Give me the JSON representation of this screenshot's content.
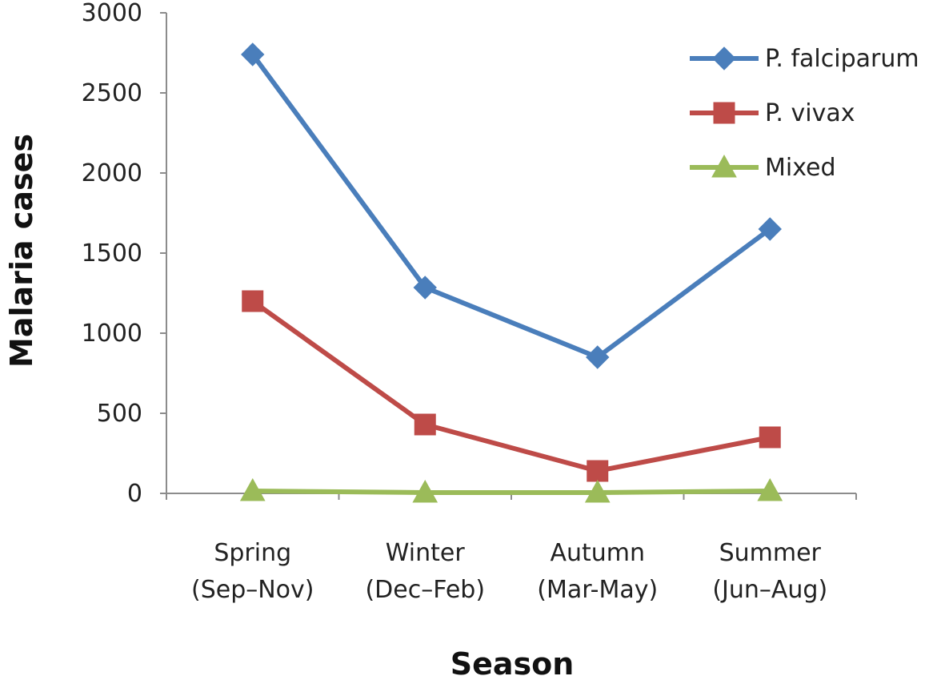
{
  "chart_data": {
    "type": "line",
    "categories": [
      [
        "Spring",
        "(Sep–Nov)"
      ],
      [
        "Winter",
        "(Dec–Feb)"
      ],
      [
        "Autumn",
        "(Mar-May)"
      ],
      [
        "Summer",
        "(Jun–Aug)"
      ]
    ],
    "series": [
      {
        "name": "P. falciparum",
        "values": [
          2740,
          1285,
          850,
          1650
        ],
        "color": "#4a7ebb",
        "marker": "diamond"
      },
      {
        "name": "P. vivax",
        "values": [
          1200,
          430,
          140,
          350
        ],
        "color": "#be4b48",
        "marker": "square"
      },
      {
        "name": "Mixed",
        "values": [
          15,
          5,
          5,
          15
        ],
        "color": "#9bbb59",
        "marker": "triangle"
      }
    ],
    "xlabel": "Season",
    "ylabel": "Malaria cases",
    "ylim": [
      0,
      3000
    ],
    "yticks": [
      0,
      500,
      1000,
      1500,
      2000,
      2500,
      3000
    ],
    "grid": false,
    "legend_position": "top-right"
  }
}
